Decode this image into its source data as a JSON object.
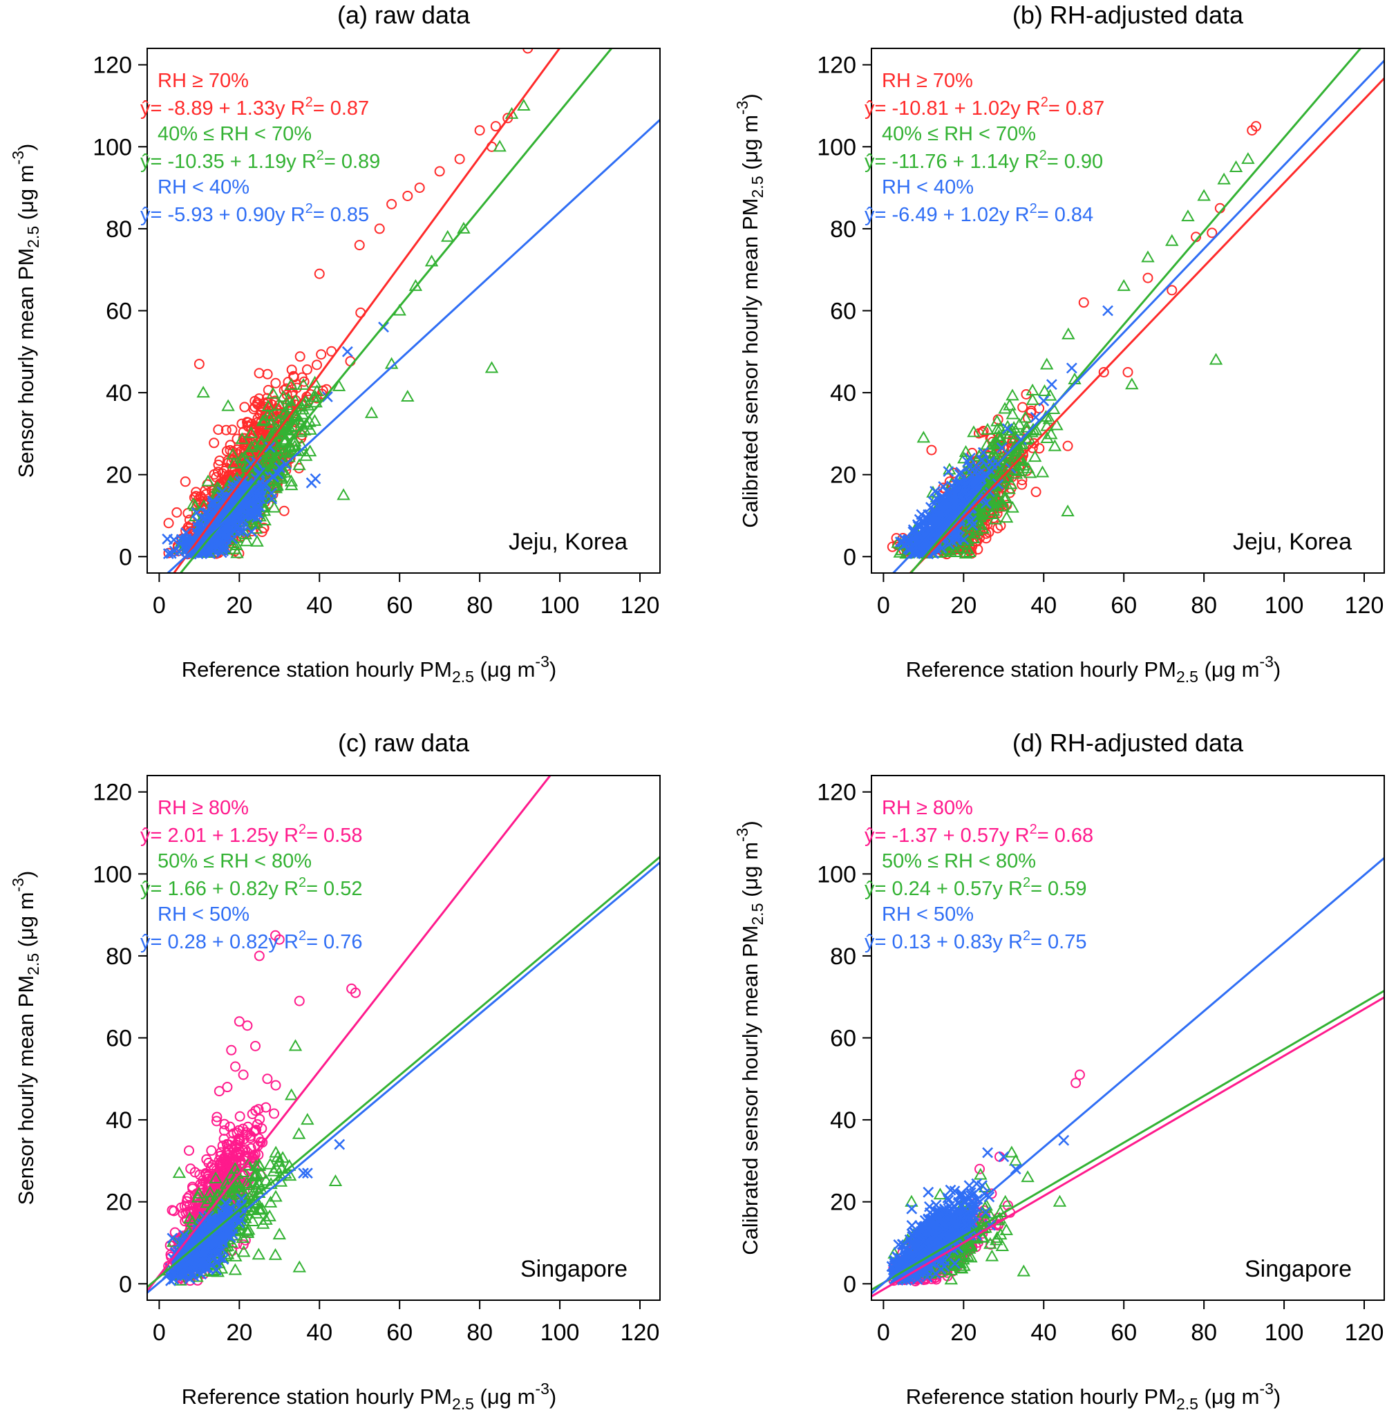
{
  "chart_data": [
    {
      "panel": "a",
      "type": "scatter",
      "title": "(a) raw data",
      "site": "Jeju, Korea",
      "xlabel": "Reference station hourly PM2.5 (μg m-3)",
      "ylabel": "Sensor hourly mean PM2.5 (μg m-3)",
      "xlim": [
        -3,
        125
      ],
      "ylim": [
        -4,
        124
      ],
      "xticks": [
        "0",
        "20",
        "40",
        "60",
        "80",
        "100",
        "120"
      ],
      "yticks": [
        "0",
        "20",
        "40",
        "60",
        "80",
        "100",
        "120"
      ],
      "series": [
        {
          "name": "RH ≥ 70%",
          "label": "RH ≥ 70%",
          "equation": "ŷ= -8.89 + 1.33y",
          "r2": "R²= 0.87",
          "intercept": -8.89,
          "slope": 1.33,
          "color": "#ff2a2a",
          "marker": "circle",
          "cloud": {
            "cx": 22,
            "sx": 7,
            "rho": 0.85,
            "n": 700
          },
          "extra": [
            [
              10,
              47
            ],
            [
              40,
              69
            ],
            [
              50,
              76
            ],
            [
              55,
              80
            ],
            [
              58,
              86
            ],
            [
              62,
              88
            ],
            [
              65,
              90
            ],
            [
              70,
              94
            ],
            [
              75,
              97
            ],
            [
              80,
              104
            ],
            [
              83,
              100
            ],
            [
              84,
              105
            ],
            [
              87,
              107
            ],
            [
              92,
              124
            ]
          ]
        },
        {
          "name": "40% ≤ RH < 70%",
          "label": "40% ≤ RH < 70%",
          "equation": "ŷ= -10.35 + 1.19y",
          "r2": "R²= 0.89",
          "intercept": -10.35,
          "slope": 1.19,
          "color": "#33b233",
          "marker": "triangle",
          "cloud": {
            "cx": 24,
            "sx": 8,
            "rho": 0.88,
            "n": 320
          },
          "extra": [
            [
              11,
              40
            ],
            [
              46,
              15
            ],
            [
              53,
              35
            ],
            [
              58,
              47
            ],
            [
              62,
              39
            ],
            [
              83,
              46
            ],
            [
              60,
              60
            ],
            [
              64,
              66
            ],
            [
              68,
              72
            ],
            [
              72,
              78
            ],
            [
              76,
              80
            ],
            [
              85,
              100
            ],
            [
              88,
              108
            ],
            [
              91,
              110
            ]
          ]
        },
        {
          "name": "RH < 40%",
          "label": "RH < 40%",
          "equation": "ŷ= -5.93 + 0.90y",
          "r2": "R²= 0.85",
          "intercept": -5.93,
          "slope": 0.9,
          "color": "#2f6ef5",
          "marker": "x",
          "cloud": {
            "cx": 16,
            "sx": 5,
            "rho": 0.85,
            "n": 400
          },
          "extra": [
            [
              38,
              18
            ],
            [
              39,
              19
            ],
            [
              42,
              39
            ],
            [
              47,
              50
            ],
            [
              56,
              56
            ]
          ]
        }
      ]
    },
    {
      "panel": "b",
      "type": "scatter",
      "title": "(b) RH-adjusted data",
      "site": "Jeju, Korea",
      "xlabel": "Reference station hourly PM2.5 (μg m-3)",
      "ylabel": "Calibrated sensor hourly mean PM2.5 (μg m-3)",
      "xlim": [
        -3,
        125
      ],
      "ylim": [
        -4,
        124
      ],
      "xticks": [
        "0",
        "20",
        "40",
        "60",
        "80",
        "100",
        "120"
      ],
      "yticks": [
        "0",
        "20",
        "40",
        "60",
        "80",
        "100",
        "120"
      ],
      "series": [
        {
          "name": "RH ≥ 70%",
          "label": "RH ≥ 70%",
          "equation": "ŷ= -10.81 + 1.02y",
          "r2": "R²= 0.87",
          "intercept": -10.81,
          "slope": 1.02,
          "color": "#ff2a2a",
          "marker": "circle",
          "cloud": {
            "cx": 22,
            "sx": 7,
            "rho": 0.85,
            "n": 500
          },
          "extra": [
            [
              12,
              26
            ],
            [
              46,
              27
            ],
            [
              50,
              62
            ],
            [
              55,
              45
            ],
            [
              61,
              45
            ],
            [
              66,
              68
            ],
            [
              72,
              65
            ],
            [
              78,
              78
            ],
            [
              82,
              79
            ],
            [
              84,
              85
            ],
            [
              92,
              104
            ],
            [
              93,
              105
            ]
          ]
        },
        {
          "name": "40% ≤ RH < 70%",
          "label": "40% ≤ RH < 70%",
          "equation": "ŷ= -11.76 + 1.14y",
          "r2": "R²= 0.90",
          "intercept": -11.76,
          "slope": 1.14,
          "color": "#33b233",
          "marker": "triangle",
          "cloud": {
            "cx": 24,
            "sx": 8,
            "rho": 0.88,
            "n": 320
          },
          "extra": [
            [
              10,
              29
            ],
            [
              46,
              11
            ],
            [
              62,
              42
            ],
            [
              83,
              48
            ],
            [
              60,
              66
            ],
            [
              66,
              73
            ],
            [
              72,
              77
            ],
            [
              76,
              83
            ],
            [
              80,
              88
            ],
            [
              85,
              92
            ],
            [
              88,
              95
            ],
            [
              91,
              97
            ]
          ]
        },
        {
          "name": "RH < 40%",
          "label": "RH < 40%",
          "equation": "ŷ= -6.49 + 1.02y",
          "r2": "R²= 0.84",
          "intercept": -6.49,
          "slope": 1.02,
          "color": "#2f6ef5",
          "marker": "x",
          "cloud": {
            "cx": 16,
            "sx": 5,
            "rho": 0.85,
            "n": 400
          },
          "extra": [
            [
              38,
              34
            ],
            [
              40,
              38
            ],
            [
              42,
              42
            ],
            [
              47,
              46
            ],
            [
              56,
              60
            ]
          ]
        }
      ]
    },
    {
      "panel": "c",
      "type": "scatter",
      "title": "(c) raw data",
      "site": "Singapore",
      "xlabel": "Reference station hourly PM2.5 (μg m-3)",
      "ylabel": "Sensor hourly mean PM2.5 (μg m-3)",
      "xlim": [
        -3,
        125
      ],
      "ylim": [
        -4,
        124
      ],
      "xticks": [
        "0",
        "20",
        "40",
        "60",
        "80",
        "100",
        "120"
      ],
      "yticks": [
        "0",
        "20",
        "40",
        "60",
        "80",
        "100",
        "120"
      ],
      "series": [
        {
          "name": "RH ≥ 80%",
          "label": "RH ≥ 80%",
          "equation": "ŷ= 2.01 + 1.25y",
          "r2": "R²= 0.58",
          "intercept": 2.01,
          "slope": 1.25,
          "color": "#ff1a8c",
          "marker": "circle",
          "cloud": {
            "cx": 14,
            "sx": 5,
            "rho": 0.7,
            "n": 650
          },
          "extra": [
            [
              29,
              85
            ],
            [
              30,
              84
            ],
            [
              25,
              80
            ],
            [
              35,
              69
            ],
            [
              48,
              72
            ],
            [
              49,
              71
            ],
            [
              20,
              64
            ],
            [
              22,
              63
            ],
            [
              24,
              58
            ],
            [
              18,
              57
            ],
            [
              19,
              53
            ],
            [
              21,
              51
            ],
            [
              27,
              50
            ],
            [
              15,
              47
            ],
            [
              17,
              48
            ]
          ]
        },
        {
          "name": "50% ≤ RH < 80%",
          "label": "50% ≤ RH < 80%",
          "equation": "ŷ= 1.66 + 0.82y",
          "r2": "R²= 0.52",
          "intercept": 1.66,
          "slope": 0.82,
          "color": "#33b233",
          "marker": "triangle",
          "cloud": {
            "cx": 17,
            "sx": 6,
            "rho": 0.7,
            "n": 260
          },
          "extra": [
            [
              35,
              4
            ],
            [
              44,
              25
            ],
            [
              34,
              58
            ],
            [
              33,
              46
            ],
            [
              37,
              40
            ],
            [
              30,
              12
            ],
            [
              29,
              7
            ],
            [
              5,
              27
            ]
          ]
        },
        {
          "name": "RH < 50%",
          "label": "RH < 50%",
          "equation": "ŷ= 0.28 + 0.82y",
          "r2": "R²= 0.76",
          "intercept": 0.28,
          "slope": 0.82,
          "color": "#2f6ef5",
          "marker": "x",
          "cloud": {
            "cx": 11,
            "sx": 4,
            "rho": 0.85,
            "n": 520
          },
          "extra": [
            [
              37,
              27
            ],
            [
              45,
              34
            ],
            [
              36,
              27
            ]
          ]
        }
      ]
    },
    {
      "panel": "d",
      "type": "scatter",
      "title": "(d) RH-adjusted data",
      "site": "Singapore",
      "xlabel": "Reference station hourly PM2.5 (μg m-3)",
      "ylabel": "Calibrated sensor hourly mean PM2.5 (μg m-3)",
      "xlim": [
        -3,
        125
      ],
      "ylim": [
        -4,
        124
      ],
      "xticks": [
        "0",
        "20",
        "40",
        "60",
        "80",
        "100",
        "120"
      ],
      "yticks": [
        "0",
        "20",
        "40",
        "60",
        "80",
        "100",
        "120"
      ],
      "series": [
        {
          "name": "RH ≥ 80%",
          "label": "RH ≥ 80%",
          "equation": "ŷ= -1.37 + 0.57y",
          "r2": "R²= 0.68",
          "intercept": -1.37,
          "slope": 0.57,
          "color": "#ff1a8c",
          "marker": "circle",
          "cloud": {
            "cx": 14,
            "sx": 5,
            "rho": 0.72,
            "n": 500
          },
          "extra": [
            [
              48,
              49
            ],
            [
              49,
              51
            ],
            [
              29,
              31
            ],
            [
              24,
              28
            ],
            [
              27,
              22
            ]
          ]
        },
        {
          "name": "50% ≤ RH < 80%",
          "label": "50% ≤ RH < 80%",
          "equation": "ŷ= 0.24 + 0.57y",
          "r2": "R²= 0.59",
          "intercept": 0.24,
          "slope": 0.57,
          "color": "#33b233",
          "marker": "triangle",
          "cloud": {
            "cx": 17,
            "sx": 6,
            "rho": 0.7,
            "n": 220
          },
          "extra": [
            [
              7,
              20
            ],
            [
              35,
              3
            ],
            [
              44,
              20
            ],
            [
              33,
              30
            ],
            [
              32,
              32
            ],
            [
              36,
              26
            ]
          ]
        },
        {
          "name": "RH < 50%",
          "label": "RH < 50%",
          "equation": "ŷ= 0.13 + 0.83y",
          "r2": "R²= 0.75",
          "intercept": 0.13,
          "slope": 0.83,
          "color": "#2f6ef5",
          "marker": "x",
          "cloud": {
            "cx": 12,
            "sx": 5,
            "rho": 0.8,
            "n": 560
          },
          "extra": [
            [
              45,
              35
            ],
            [
              26,
              32
            ],
            [
              30,
              31
            ],
            [
              33,
              28
            ]
          ]
        }
      ]
    }
  ]
}
